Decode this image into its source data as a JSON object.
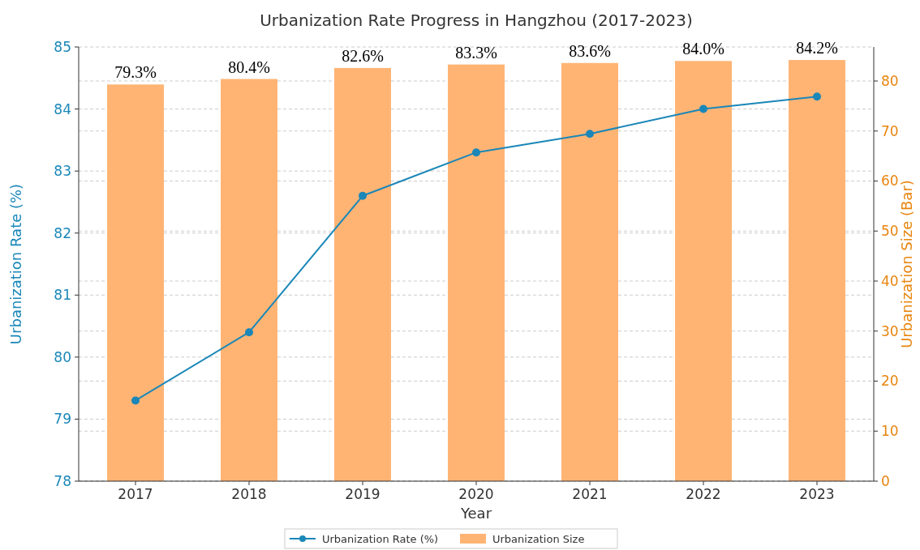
{
  "chart_data": {
    "type": "bar",
    "title": "Urbanization Rate Progress in Hangzhou (2017-2023)",
    "xlabel": "Year",
    "ylabel": "Urbanization Rate (%)",
    "y2label": "Urbanization Size (Bar)",
    "categories": [
      "2017",
      "2018",
      "2019",
      "2020",
      "2021",
      "2022",
      "2023"
    ],
    "series": [
      {
        "name": "Urbanization Rate (%)",
        "type": "line",
        "color": "#1a87b8",
        "values": [
          79.3,
          80.4,
          82.6,
          83.3,
          83.6,
          84.0,
          84.2
        ]
      },
      {
        "name": "Urbanization Size",
        "axis": "y2",
        "color": "#ffb474",
        "values": [
          79.3,
          80.4,
          82.6,
          83.3,
          83.6,
          84.0,
          84.2
        ],
        "value_labels": [
          "79.3%",
          "80.4%",
          "82.6%",
          "83.3%",
          "83.6%",
          "84.0%",
          "84.2%"
        ]
      }
    ],
    "ylim": [
      78,
      85
    ],
    "yticks": [
      78,
      79,
      80,
      81,
      82,
      83,
      84,
      85
    ],
    "y2lim": [
      0,
      86.8
    ],
    "y2ticks": [
      0,
      10,
      20,
      30,
      40,
      50,
      60,
      70,
      80
    ],
    "grid": true,
    "legend": "bottom",
    "marker": "circle",
    "line_style": "solid"
  }
}
